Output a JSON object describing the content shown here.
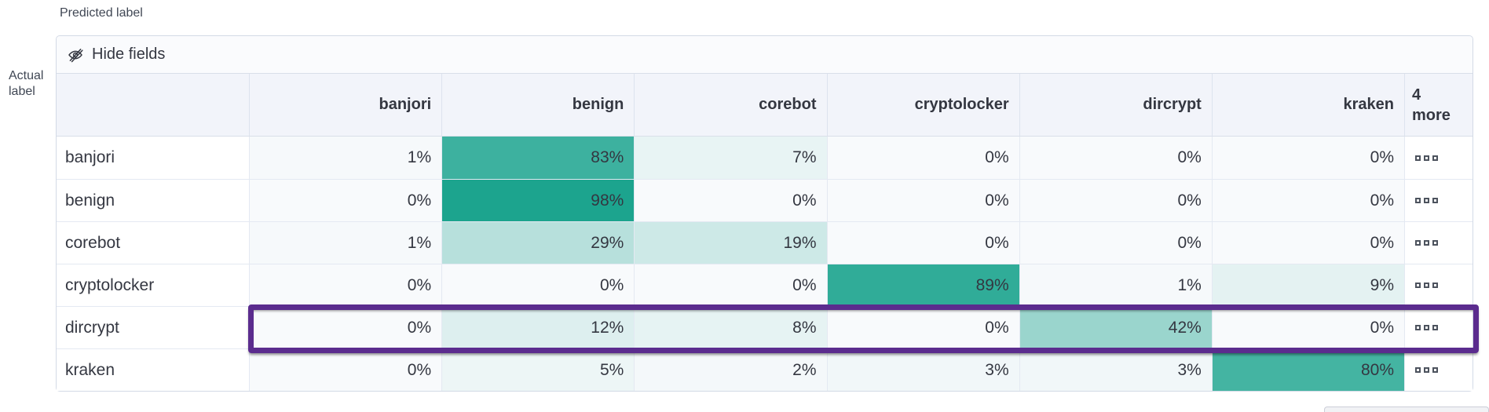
{
  "axes": {
    "predicted_label": "Predicted label",
    "actual_label_lines": [
      "Actual",
      "label"
    ]
  },
  "toolbar": {
    "hide_fields_label": "Hide fields",
    "icon": "eye-closed-icon"
  },
  "matrix": {
    "columns": [
      "banjori",
      "benign",
      "corebot",
      "cryptolocker",
      "dircrypt",
      "kraken"
    ],
    "more_header": {
      "count": "4",
      "word": "more"
    },
    "value_suffix": "%",
    "rows": [
      {
        "label": "banjori",
        "values": [
          1,
          83,
          7,
          0,
          0,
          0
        ]
      },
      {
        "label": "benign",
        "values": [
          0,
          98,
          0,
          0,
          0,
          0
        ]
      },
      {
        "label": "corebot",
        "values": [
          1,
          29,
          19,
          0,
          0,
          0
        ]
      },
      {
        "label": "cryptolocker",
        "values": [
          0,
          0,
          0,
          89,
          1,
          9
        ]
      },
      {
        "label": "dircrypt",
        "values": [
          0,
          12,
          8,
          0,
          42,
          0
        ],
        "highlighted": true
      },
      {
        "label": "kraken",
        "values": [
          0,
          5,
          2,
          3,
          3,
          80
        ]
      }
    ]
  },
  "highlight": {
    "row_label": "dircrypt",
    "border_color": "#5B2C8E"
  },
  "colors": {
    "heat_base": "#17A28C",
    "cell_zero_bg": "#F8FAFC",
    "header_bg": "#F2F4FA",
    "text": "#343741"
  },
  "chart_data": {
    "type": "heatmap",
    "xlabel": "Predicted label",
    "ylabel": "Actual label",
    "x_categories": [
      "banjori",
      "benign",
      "corebot",
      "cryptolocker",
      "dircrypt",
      "kraken"
    ],
    "y_categories": [
      "banjori",
      "benign",
      "corebot",
      "cryptolocker",
      "dircrypt",
      "kraken"
    ],
    "values_percent": [
      [
        1,
        83,
        7,
        0,
        0,
        0
      ],
      [
        0,
        98,
        0,
        0,
        0,
        0
      ],
      [
        1,
        29,
        19,
        0,
        0,
        0
      ],
      [
        0,
        0,
        0,
        89,
        1,
        9
      ],
      [
        0,
        12,
        8,
        0,
        42,
        0
      ],
      [
        0,
        5,
        2,
        3,
        3,
        80
      ]
    ],
    "hidden_columns_indicator": "4 more",
    "legend_position": "none",
    "grid": true
  }
}
